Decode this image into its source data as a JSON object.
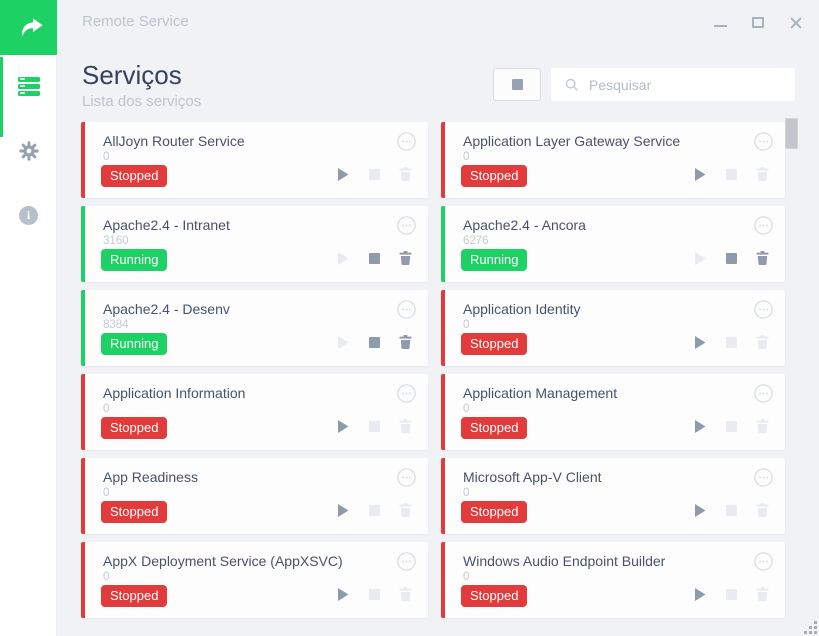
{
  "window": {
    "title": "Remote Service",
    "controls": {
      "minimize_icon": "–",
      "maximize_icon": "❐",
      "close_icon": "×"
    },
    "resize_grip_icon": "resize-grip"
  },
  "sidebar": {
    "logo_icon": "share-arrow-icon",
    "items": [
      {
        "id": "services",
        "icon": "server-list-icon",
        "active": true
      },
      {
        "id": "settings",
        "icon": "gear-icon",
        "active": false
      },
      {
        "id": "about",
        "icon": "info-icon",
        "active": false
      }
    ]
  },
  "header": {
    "title": "Serviços",
    "subtitle": "Lista dos serviços",
    "stop_all_icon": "stop-square-icon",
    "search": {
      "placeholder": "Pesquisar",
      "icon": "search-icon",
      "value": ""
    }
  },
  "services": [
    {
      "name": "AllJoyn Router Service",
      "pid": "0",
      "status": "Stopped"
    },
    {
      "name": "Application Layer Gateway Service",
      "pid": "0",
      "status": "Stopped"
    },
    {
      "name": "Apache2.4 - Intranet",
      "pid": "3160",
      "status": "Running"
    },
    {
      "name": "Apache2.4 - Ancora",
      "pid": "6276",
      "status": "Running"
    },
    {
      "name": "Apache2.4 - Desenv",
      "pid": "8384",
      "status": "Running"
    },
    {
      "name": "Application Identity",
      "pid": "0",
      "status": "Stopped"
    },
    {
      "name": "Application Information",
      "pid": "0",
      "status": "Stopped"
    },
    {
      "name": "Application Management",
      "pid": "0",
      "status": "Stopped"
    },
    {
      "name": "App Readiness",
      "pid": "0",
      "status": "Stopped"
    },
    {
      "name": "Microsoft App-V Client",
      "pid": "0",
      "status": "Stopped"
    },
    {
      "name": "AppX Deployment Service (AppXSVC)",
      "pid": "0",
      "status": "Stopped"
    },
    {
      "name": "Windows Audio Endpoint Builder",
      "pid": "0",
      "status": "Stopped"
    }
  ],
  "card_icons": {
    "menu": "circle-ellipsis-icon",
    "start": "play-icon",
    "stop": "stop-square-icon",
    "delete": "trash-icon"
  },
  "colors": {
    "running_green": "#1ed164",
    "stopped_red": "#e23b3b",
    "app_background": "#f0f2f6",
    "card_background": "#fdfdfe",
    "title_text": "#36425c",
    "muted_text": "#bcc4cf"
  },
  "scrollbar": {
    "position": "top"
  }
}
